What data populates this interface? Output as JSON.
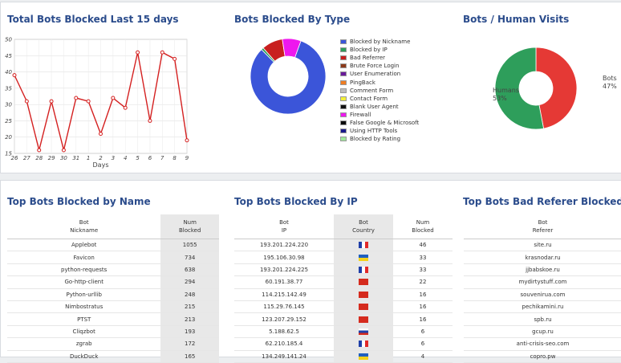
{
  "sections": {
    "total_title": "Total Bots Blocked Last 15 days",
    "type_title": "Bots Blocked By Type",
    "visits_title": "Bots / Human Visits",
    "name_title": "Top Bots Blocked by Name",
    "ip_title": "Top Bots Blocked By IP",
    "referer_title": "Top Bots Bad Referer Blocked"
  },
  "chart_data": [
    {
      "type": "line",
      "title": "Total Bots Blocked Last 15 days",
      "xlabel": "Days",
      "x": [
        "26",
        "27",
        "28",
        "29",
        "30",
        "31",
        "1",
        "2",
        "3",
        "4",
        "5",
        "6",
        "7",
        "8",
        "9"
      ],
      "values": [
        39,
        31,
        16,
        31,
        16,
        32,
        31,
        21,
        32,
        29,
        46,
        25,
        46,
        44,
        19
      ],
      "ylim": [
        15,
        50
      ],
      "yticks": [
        15,
        20,
        25,
        30,
        35,
        40,
        45,
        50
      ],
      "grid": true,
      "color": "#d42020"
    },
    {
      "type": "pie",
      "title": "Bots Blocked By Type",
      "legend_position": "right",
      "series": [
        {
          "name": "Blocked by Nickname",
          "value": 82,
          "color": "#3b55d9"
        },
        {
          "name": "Blocked by IP",
          "value": 1,
          "color": "#2e9e5b"
        },
        {
          "name": "Bad Referrer",
          "value": 9,
          "color": "#c81f1f"
        },
        {
          "name": "Brute Force Login",
          "value": 0,
          "color": "#8b3a1a"
        },
        {
          "name": "User Enumeration",
          "value": 0,
          "color": "#6a1b9a"
        },
        {
          "name": "PingBack",
          "value": 0,
          "color": "#f07d22"
        },
        {
          "name": "Comment Form",
          "value": 0,
          "color": "#bdbdbd"
        },
        {
          "name": "Contact Form",
          "value": 0,
          "color": "#f2ef3a"
        },
        {
          "name": "Blank User Agent",
          "value": 0,
          "color": "#111111"
        },
        {
          "name": "Firewall",
          "value": 8,
          "color": "#ee18ee"
        },
        {
          "name": "False Google & Microsoft",
          "value": 0,
          "color": "#0a0a0a"
        },
        {
          "name": "Using HTTP Tools",
          "value": 0,
          "color": "#1a1a8c"
        },
        {
          "name": "Blocked by Rating",
          "value": 0,
          "color": "#9fe89a"
        }
      ]
    },
    {
      "type": "pie",
      "title": "Bots / Human Visits",
      "series": [
        {
          "name": "Bots",
          "value": 47,
          "label": "47%",
          "color": "#e53935"
        },
        {
          "name": "Humans",
          "value": 53,
          "label": "53%",
          "color": "#2e9e5b"
        }
      ]
    }
  ],
  "names_table": {
    "headers": [
      [
        "Bot",
        "Nickname"
      ],
      [
        "Num",
        "Blocked"
      ]
    ],
    "rows": [
      [
        "Applebot",
        "1055"
      ],
      [
        "Favicon",
        "734"
      ],
      [
        "python-requests",
        "638"
      ],
      [
        "Go-http-client",
        "294"
      ],
      [
        "Python-urllib",
        "248"
      ],
      [
        "Nimbostratus",
        "215"
      ],
      [
        "PTST",
        "213"
      ],
      [
        "Cliqzbot",
        "193"
      ],
      [
        "zgrab",
        "172"
      ],
      [
        "DuckDuck",
        "165"
      ]
    ]
  },
  "ip_table": {
    "headers": [
      [
        "Bot",
        "IP"
      ],
      [
        "Bot",
        "Country"
      ],
      [
        "Num",
        "Blocked"
      ]
    ],
    "rows": [
      [
        "193.201.224.220",
        "fr",
        "46"
      ],
      [
        "195.106.30.98",
        "ua",
        "33"
      ],
      [
        "193.201.224.225",
        "fr",
        "33"
      ],
      [
        "60.191.38.77",
        "cn",
        "22"
      ],
      [
        "114.215.142.49",
        "cn",
        "16"
      ],
      [
        "115.29.76.145",
        "cn",
        "16"
      ],
      [
        "123.207.29.152",
        "cn",
        "16"
      ],
      [
        "5.188.62.5",
        "ru",
        "6"
      ],
      [
        "62.210.185.4",
        "fr",
        "6"
      ],
      [
        "134.249.141.24",
        "ua",
        "4"
      ]
    ]
  },
  "referer_table": {
    "headers": [
      [
        "Bot",
        "Referer"
      ]
    ],
    "rows": [
      [
        "site.ru"
      ],
      [
        "krasnodar.ru"
      ],
      [
        "jjbabskoe.ru"
      ],
      [
        "mydirtystuff.com"
      ],
      [
        "souvenirua.com"
      ],
      [
        "pechikamini.ru"
      ],
      [
        "spb.ru"
      ],
      [
        "gcup.ru"
      ],
      [
        "anti-crisis-seo.com"
      ],
      [
        "copro.pw"
      ]
    ]
  }
}
